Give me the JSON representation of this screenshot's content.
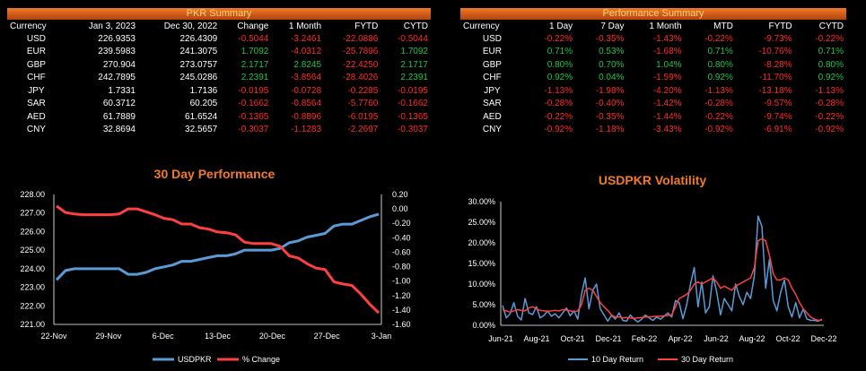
{
  "pkr_summary": {
    "title": "PKR Summary",
    "headers": [
      "Currency",
      "Jan 3, 2023",
      "Dec 30, 2022",
      "Change",
      "1 Month",
      "FYTD",
      "CYTD"
    ],
    "rows": [
      [
        "USD",
        "226.9353",
        "226.4309",
        "-0.5044",
        "-3.2461",
        "-22.0886",
        "-0.5044"
      ],
      [
        "EUR",
        "239.5983",
        "241.3075",
        "1.7092",
        "-4.0312",
        "-25.7896",
        "1.7092"
      ],
      [
        "GBP",
        "270.904",
        "273.0757",
        "2.1717",
        "2.8245",
        "-22.4250",
        "2.1717"
      ],
      [
        "CHF",
        "242.7895",
        "245.0286",
        "2.2391",
        "-3.8564",
        "-28.4026",
        "2.2391"
      ],
      [
        "JPY",
        "1.7331",
        "1.7136",
        "-0.0195",
        "-0.0728",
        "-0.2285",
        "-0.0195"
      ],
      [
        "SAR",
        "60.3712",
        "60.205",
        "-0.1662",
        "-0.8564",
        "-5.7760",
        "-0.1662"
      ],
      [
        "AED",
        "61.7889",
        "61.6524",
        "-0.1365",
        "-0.8896",
        "-6.0195",
        "-0.1365"
      ],
      [
        "CNY",
        "32.8694",
        "32.5657",
        "-0.3037",
        "-1.1283",
        "-2.2697",
        "-0.3037"
      ]
    ]
  },
  "performance_summary": {
    "title": "Performance Summary",
    "headers": [
      "Currency",
      "1 Day",
      "7 Day",
      "1 Month",
      "MTD",
      "FYTD",
      "CYTD"
    ],
    "rows": [
      [
        "USD",
        "-0.22%",
        "-0.35%",
        "-1.43%",
        "-0.22%",
        "-9.73%",
        "-0.22%"
      ],
      [
        "EUR",
        "0.71%",
        "0.53%",
        "-1.68%",
        "0.71%",
        "-10.76%",
        "0.71%"
      ],
      [
        "GBP",
        "0.80%",
        "0.70%",
        "1.04%",
        "0.80%",
        "-8.28%",
        "0.80%"
      ],
      [
        "CHF",
        "0.92%",
        "0.04%",
        "-1.59%",
        "0.92%",
        "-11.70%",
        "0.92%"
      ],
      [
        "JPY",
        "-1.13%",
        "-1.98%",
        "-4.20%",
        "-1.13%",
        "-13.18%",
        "-1.13%"
      ],
      [
        "SAR",
        "-0.28%",
        "-0.40%",
        "-1.42%",
        "-0.28%",
        "-9.57%",
        "-0.28%"
      ],
      [
        "AED",
        "-0.22%",
        "-0.35%",
        "-1.44%",
        "-0.22%",
        "-9.74%",
        "-0.22%"
      ],
      [
        "CNY",
        "-0.92%",
        "-1.18%",
        "-3.43%",
        "-0.92%",
        "-6.91%",
        "-0.92%"
      ]
    ]
  },
  "colors": {
    "positive": "#22c24a",
    "negative": "#ff2a2a",
    "title_orange": "#f27a2e",
    "series_blue": "#5b9bd5",
    "series_red": "#ff4040"
  },
  "chart_data": [
    {
      "type": "line",
      "title": "30 Day Performance",
      "x_ticks": [
        "22-Nov",
        "29-Nov",
        "6-Dec",
        "13-Dec",
        "20-Dec",
        "27-Dec",
        "3-Jan"
      ],
      "ylim": [
        221.0,
        228.0
      ],
      "y_ticks": [
        "221.00",
        "222.00",
        "223.00",
        "224.00",
        "225.00",
        "226.00",
        "227.00",
        "228.00"
      ],
      "y2lim": [
        -1.6,
        0.2
      ],
      "y2_ticks": [
        "-1.60",
        "-1.40",
        "-1.20",
        "-1.00",
        "-0.80",
        "-0.60",
        "-0.40",
        "-0.20",
        "0.00",
        "0.20"
      ],
      "grid": false,
      "legend_position": "bottom",
      "series": [
        {
          "name": "USDPKR",
          "axis": "left",
          "color": "#5b9bd5",
          "values": [
            223.4,
            223.9,
            224.0,
            224.0,
            224.0,
            224.0,
            224.0,
            224.0,
            223.7,
            223.7,
            223.8,
            224.0,
            224.1,
            224.2,
            224.4,
            224.4,
            224.5,
            224.6,
            224.7,
            224.7,
            224.8,
            225.0,
            225.0,
            225.0,
            225.0,
            225.1,
            225.4,
            225.5,
            225.7,
            225.8,
            225.9,
            226.3,
            226.4,
            226.4,
            226.6,
            226.8,
            226.94
          ]
        },
        {
          "name": "% Change",
          "axis": "right",
          "color": "#ff4040",
          "values": [
            0.04,
            -0.05,
            -0.07,
            -0.08,
            -0.08,
            -0.08,
            -0.08,
            -0.07,
            0.0,
            0.0,
            -0.04,
            -0.08,
            -0.13,
            -0.15,
            -0.21,
            -0.21,
            -0.26,
            -0.28,
            -0.32,
            -0.33,
            -0.36,
            -0.46,
            -0.48,
            -0.48,
            -0.48,
            -0.52,
            -0.65,
            -0.68,
            -0.76,
            -0.82,
            -0.84,
            -1.01,
            -1.04,
            -1.06,
            -1.18,
            -1.32,
            -1.44
          ]
        }
      ]
    },
    {
      "type": "line",
      "title": "USDPKR Volatility",
      "x_ticks": [
        "Jun-21",
        "Aug-21",
        "Oct-21",
        "Dec-21",
        "Feb-22",
        "Apr-22",
        "Jun-22",
        "Aug-22",
        "Oct-22",
        "Dec-22"
      ],
      "ylim": [
        0,
        30
      ],
      "y_ticks": [
        "0.00%",
        "5.00%",
        "10.00%",
        "15.00%",
        "20.00%",
        "25.00%",
        "30.00%"
      ],
      "grid": false,
      "legend_position": "bottom",
      "series": [
        {
          "name": "10 Day Return",
          "color": "#5b9bd5",
          "values": [
            4.8,
            1.8,
            2.8,
            5.5,
            2.2,
            1.3,
            6.5,
            3.0,
            2.6,
            4.5,
            1.8,
            2.4,
            3.5,
            2.2,
            2.8,
            1.8,
            3.0,
            4.2,
            2.3,
            3.5,
            1.5,
            7.5,
            11.5,
            4.0,
            8.5,
            10.0,
            4.0,
            2.5,
            1.0,
            2.4,
            1.5,
            3.0,
            1.2,
            1.0,
            2.5,
            1.5,
            0.8,
            1.5,
            2.5,
            1.8,
            1.2,
            2.0,
            1.5,
            2.2,
            3.0,
            2.0,
            6.0,
            5.5,
            1.6,
            5.0,
            10.0,
            14.0,
            4.5,
            10.5,
            3.0,
            4.5,
            12.0,
            8.0,
            2.5,
            6.5,
            5.0,
            3.5,
            10.0,
            7.0,
            5.0,
            8.0,
            6.5,
            12.0,
            26.5,
            24.0,
            9.0,
            16.0,
            6.0,
            3.5,
            8.0,
            11.0,
            4.5,
            2.0,
            5.5,
            1.8,
            4.0,
            1.5,
            1.2,
            1.2,
            1.0,
            1.5
          ]
        },
        {
          "name": "30 Day Return",
          "color": "#ff4040",
          "values": [
            3.8,
            3.5,
            3.2,
            3.5,
            3.8,
            3.6,
            3.5,
            4.2,
            4.5,
            4.0,
            3.6,
            3.5,
            3.4,
            3.5,
            3.6,
            3.5,
            3.8,
            3.7,
            3.5,
            3.3,
            3.5,
            5.0,
            8.5,
            9.0,
            8.5,
            7.0,
            5.5,
            4.5,
            3.6,
            2.5,
            2.0,
            2.0,
            1.8,
            1.9,
            1.8,
            1.7,
            1.8,
            1.9,
            2.0,
            2.0,
            2.1,
            2.2,
            2.2,
            2.3,
            2.4,
            2.5,
            4.5,
            6.5,
            7.0,
            7.5,
            8.5,
            10.0,
            10.5,
            10.0,
            10.5,
            11.0,
            11.5,
            10.5,
            9.0,
            9.5,
            9.0,
            8.5,
            9.5,
            10.0,
            10.5,
            11.0,
            11.5,
            14.0,
            20.5,
            21.0,
            20.5,
            17.0,
            12.5,
            11.0,
            11.0,
            11.5,
            11.0,
            9.0,
            7.5,
            5.5,
            4.0,
            3.0,
            2.0,
            1.5,
            1.2,
            1.3
          ]
        }
      ]
    }
  ]
}
